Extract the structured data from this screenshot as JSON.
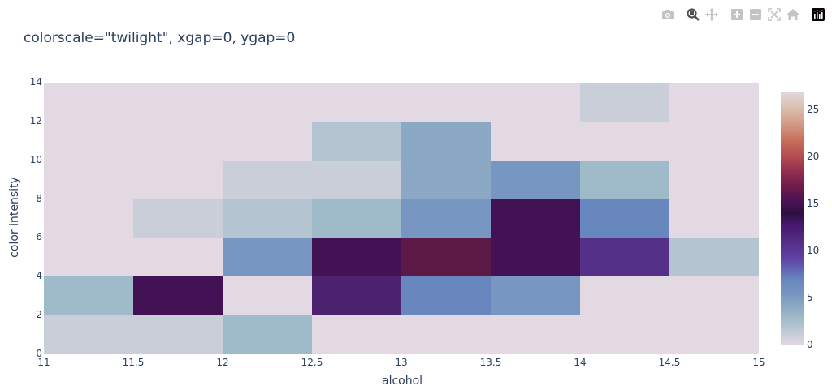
{
  "title": "colorscale=\"twilight\", xgap=0, ygap=0",
  "modebar": {
    "buttons": [
      {
        "name": "camera-icon",
        "label": "Download plot as a png"
      },
      {
        "name": "zoom-icon",
        "label": "Zoom"
      },
      {
        "name": "pan-icon",
        "label": "Pan"
      },
      {
        "name": "zoom-in-icon",
        "label": "Zoom in"
      },
      {
        "name": "zoom-out-icon",
        "label": "Zoom out"
      },
      {
        "name": "autoscale-icon",
        "label": "Autoscale"
      },
      {
        "name": "home-icon",
        "label": "Reset axes"
      },
      {
        "name": "plotly-logo-icon",
        "label": "Produced with Plotly"
      }
    ]
  },
  "axes": {
    "xlabel": "alcohol",
    "ylabel": "color intensity",
    "xticks": [
      "11",
      "11.5",
      "12",
      "12.5",
      "13",
      "13.5",
      "14",
      "14.5",
      "15"
    ],
    "yticks": [
      "0",
      "2",
      "4",
      "6",
      "8",
      "10",
      "12",
      "14"
    ]
  },
  "colorbar": {
    "ticks": [
      "0",
      "5",
      "10",
      "15",
      "20",
      "25"
    ],
    "max": 27
  },
  "chart_data": {
    "type": "heatmap",
    "title": "colorscale=\"twilight\", xgap=0, ygap=0",
    "xlabel": "alcohol",
    "ylabel": "color intensity",
    "colorscale": "twilight",
    "xgap": 0,
    "ygap": 0,
    "x_bins": [
      "11-11.5",
      "11.5-12",
      "12-12.5",
      "12.5-13",
      "13-13.5",
      "13.5-14",
      "14-14.5",
      "14.5-15"
    ],
    "y_bins": [
      "0-2",
      "2-4",
      "4-6",
      "6-8",
      "8-10",
      "10-12",
      "12-14"
    ],
    "x_range": [
      11,
      15
    ],
    "y_range": [
      0,
      14
    ],
    "z": [
      [
        1,
        1,
        3,
        0,
        0,
        0,
        0,
        0
      ],
      [
        3,
        14,
        0,
        12,
        7,
        6,
        0,
        0
      ],
      [
        0,
        0,
        6,
        14,
        17,
        14,
        11,
        2
      ],
      [
        0,
        1,
        2,
        3,
        6,
        14,
        7,
        0
      ],
      [
        0,
        0,
        1,
        1,
        4,
        6,
        3,
        0
      ],
      [
        0,
        0,
        0,
        2,
        4,
        0,
        0,
        0
      ],
      [
        0,
        0,
        0,
        0,
        0,
        0,
        1,
        0
      ]
    ],
    "zmin": 0,
    "zmax": 27,
    "colorbar_ticks": [
      0,
      5,
      10,
      15,
      20,
      25
    ],
    "grid": false
  },
  "cell_colors": {
    "0": "#e2d9e2",
    "1": "#c9ced9",
    "2": "#b4c4d0",
    "3": "#9fbac8",
    "4": "#8ba8c4",
    "6": "#7896c2",
    "7": "#6787be",
    "11": "#553089",
    "12": "#4c2170",
    "14": "#421255",
    "17": "#5e1a47"
  }
}
